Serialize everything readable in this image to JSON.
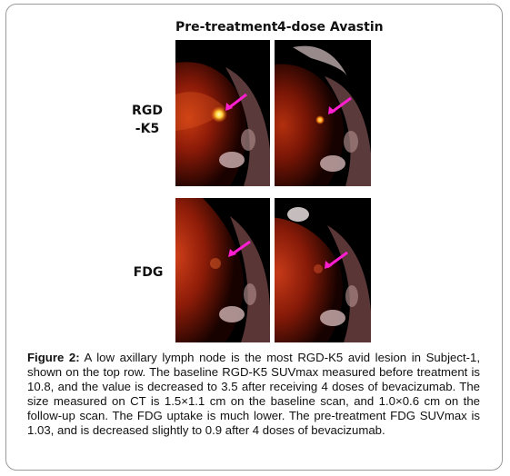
{
  "figure": {
    "columns": [
      "Pre-treatment",
      "4-dose Avastin"
    ],
    "rows": [
      {
        "label_line1": "RGD",
        "label_line2": "-K5"
      },
      {
        "label_line1": "FDG",
        "label_line2": ""
      }
    ],
    "arrow_color": "#ff1fd0"
  },
  "caption": {
    "label": "Figure 2:",
    "text": " A low axillary lymph node is the most RGD-K5 avid lesion in Subject-1, shown on the top row. The baseline RGD-K5 SUVmax measured before treatment is 10.8, and the value is decreased to 3.5 after receiving 4 doses of bevacizumab. The size measured on CT is 1.5×1.1 cm on the baseline scan, and 1.0×0.6 cm on the follow-up scan. The FDG uptake is much lower. The pre-treatment FDG SUVmax is 1.03, and is decreased slightly to 0.9 after 4 doses of bevacizumab."
  }
}
